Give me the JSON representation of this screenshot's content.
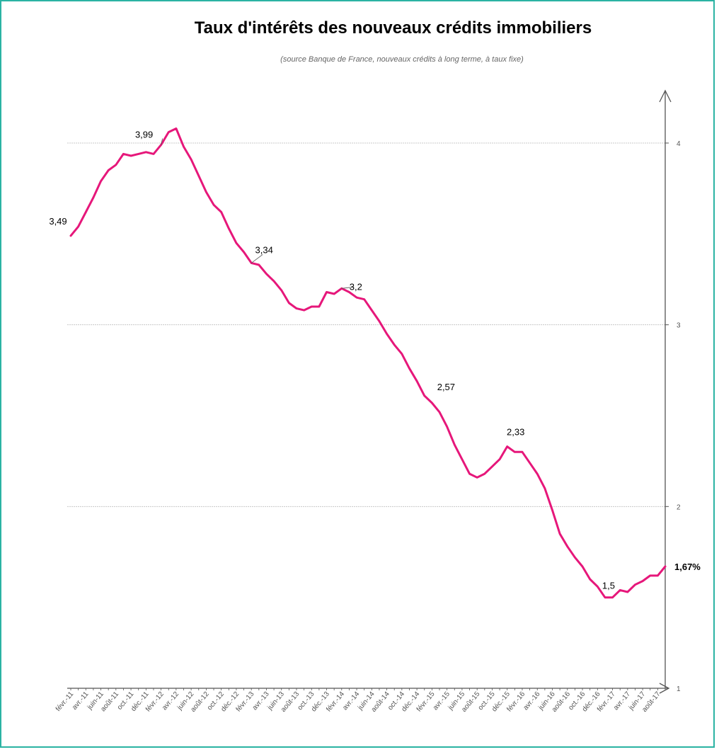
{
  "chart_data": {
    "type": "line",
    "title": "Taux d'intérêts des nouveaux crédits immobiliers",
    "subtitle": "(source Banque de France, nouveaux crédits à long terme, à taux fixe)",
    "ylim": [
      1,
      4.3
    ],
    "yticks": [
      "1",
      "2",
      "3",
      "4"
    ],
    "grid": true,
    "colors": {
      "line": "#e6177a",
      "grid": "#c8c8c8",
      "axis": "#555555",
      "border": "#2bb3a3"
    },
    "x_tick_labels": [
      "févr.-11",
      "avr.-11",
      "juin-11",
      "août-11",
      "oct.-11",
      "déc.-11",
      "févr.-12",
      "avr.-12",
      "juin-12",
      "août-12",
      "oct.-12",
      "déc.-12",
      "févr.-13",
      "avr.-13",
      "juin-13",
      "août-13",
      "oct.-13",
      "déc.-13",
      "févr.-14",
      "avr.-14",
      "juin-14",
      "août-14",
      "oct.-14",
      "déc.-14",
      "févr.-15",
      "avr.-15",
      "juin-15",
      "août-15",
      "oct.-15",
      "déc.-15",
      "févr.-16",
      "avr.-16",
      "juin-16",
      "août-16",
      "oct.-16",
      "déc.-16",
      "févr.-17",
      "avr.-17",
      "juin-17",
      "août-17"
    ],
    "series": [
      {
        "values": [
          3.49,
          3.54,
          3.62,
          3.7,
          3.79,
          3.85,
          3.88,
          3.94,
          3.93,
          3.94,
          3.95,
          3.94,
          3.99,
          4.06,
          4.08,
          3.98,
          3.91,
          3.82,
          3.73,
          3.66,
          3.62,
          3.53,
          3.45,
          3.4,
          3.34,
          3.33,
          3.28,
          3.24,
          3.19,
          3.12,
          3.09,
          3.08,
          3.1,
          3.1,
          3.18,
          3.17,
          3.2,
          3.18,
          3.15,
          3.14,
          3.08,
          3.02,
          2.95,
          2.89,
          2.84,
          2.76,
          2.69,
          2.61,
          2.57,
          2.52,
          2.44,
          2.34,
          2.26,
          2.18,
          2.16,
          2.18,
          2.22,
          2.26,
          2.33,
          2.3,
          2.3,
          2.24,
          2.18,
          2.1,
          1.98,
          1.85,
          1.78,
          1.72,
          1.67,
          1.6,
          1.56,
          1.5,
          1.5,
          1.54,
          1.53,
          1.57,
          1.59,
          1.62,
          1.62,
          1.67
        ]
      }
    ],
    "annotations": [
      {
        "index": 0,
        "label": "3,49"
      },
      {
        "index": 12,
        "label": "3,99"
      },
      {
        "index": 24,
        "label": "3,34"
      },
      {
        "index": 36,
        "label": "3,2"
      },
      {
        "index": 48,
        "label": "2,57"
      },
      {
        "index": 58,
        "label": "2,33"
      },
      {
        "index": 71,
        "label": "1,5"
      }
    ],
    "last_label": "1,67%"
  }
}
